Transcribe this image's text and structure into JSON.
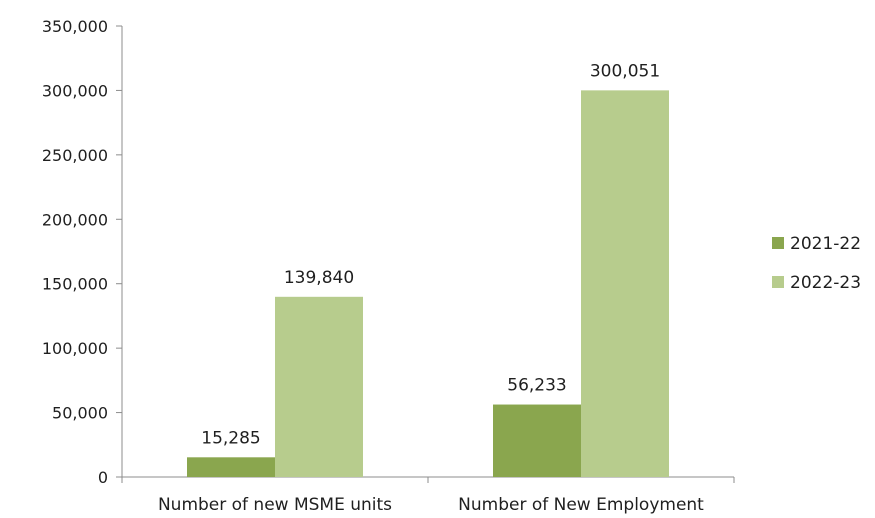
{
  "chart_data": {
    "type": "bar",
    "categories": [
      "Number of new MSME units",
      "Number of New Employment"
    ],
    "series": [
      {
        "name": "2021-22",
        "values": [
          15285,
          56233
        ],
        "color": "#8aa64e"
      },
      {
        "name": "2022-23",
        "values": [
          139840,
          300051
        ],
        "color": "#b7cc8d"
      }
    ],
    "data_labels": [
      [
        "15,285",
        "56,233"
      ],
      [
        "139,840",
        "300,051"
      ]
    ],
    "y_ticks": [
      {
        "value": 0,
        "label": "0"
      },
      {
        "value": 50000,
        "label": "50,000"
      },
      {
        "value": 100000,
        "label": "100,000"
      },
      {
        "value": 150000,
        "label": "150,000"
      },
      {
        "value": 200000,
        "label": "200,000"
      },
      {
        "value": 250000,
        "label": "250,000"
      },
      {
        "value": 300000,
        "label": "300,000"
      },
      {
        "value": 350000,
        "label": "350,000"
      }
    ],
    "ylim": [
      0,
      350000
    ],
    "grid": false,
    "legend_position": "right"
  }
}
